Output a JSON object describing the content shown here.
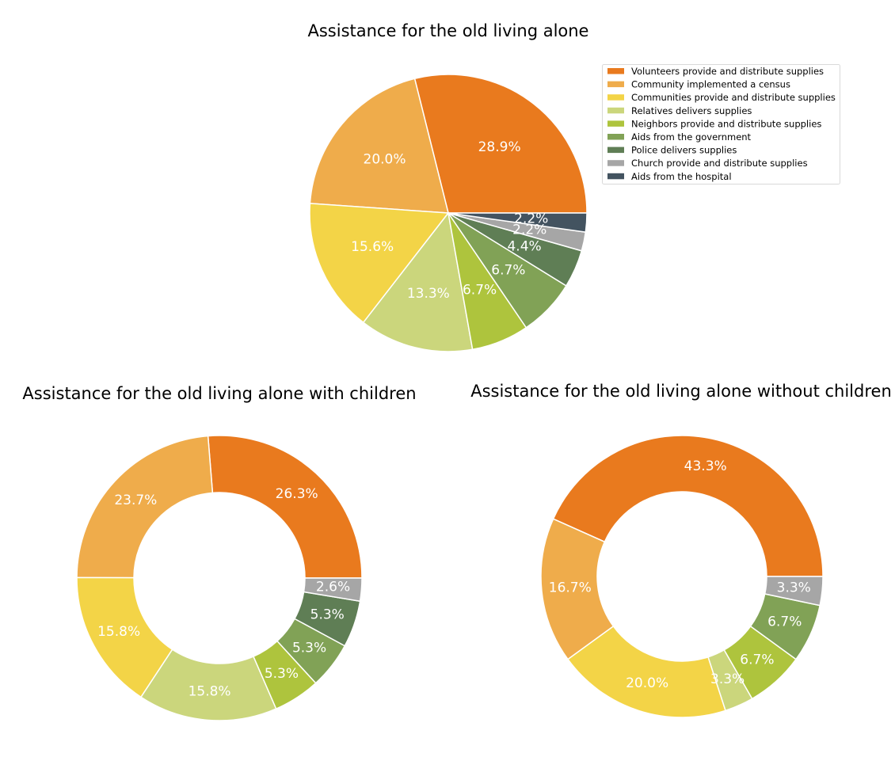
{
  "chart_data": [
    {
      "type": "pie",
      "title": "Assistance for the old living alone",
      "categories": [
        "Volunteers provide and distribute supplies",
        "Community implemented a census",
        "Communities provide and distribute supplies",
        "Relatives delivers supplies",
        "Neighbors provide and distribute supplies",
        "Aids from the government",
        "Police delivers supplies",
        "Church provide and distribute supplies",
        "Aids from the hospital"
      ],
      "values": [
        28.9,
        20.0,
        15.6,
        13.3,
        6.7,
        6.7,
        4.4,
        2.2,
        2.2
      ],
      "labels": [
        "28.9%",
        "20.0%",
        "15.6%",
        "13.3%",
        "6.7%",
        "6.7%",
        "4.4%",
        "2.2%",
        "2.2%"
      ],
      "colors": [
        "#E97A1E",
        "#EFAC4B",
        "#F3D447",
        "#CBD67C",
        "#AEC43D",
        "#81A256",
        "#5F7E55",
        "#A6A6A6",
        "#435360"
      ],
      "legend_placement": "top-right",
      "start_angle": 0,
      "direction": "counterclockwise"
    },
    {
      "type": "donut",
      "title": "Assistance for the old living alone with children",
      "categories": [
        "Volunteers provide and distribute supplies",
        "Community implemented a census",
        "Communities provide and distribute supplies",
        "Relatives delivers supplies",
        "Neighbors provide and distribute supplies",
        "Aids from the government",
        "Police delivers supplies",
        "Church provide and distribute supplies"
      ],
      "values": [
        26.3,
        23.7,
        15.8,
        15.8,
        5.3,
        5.3,
        5.3,
        2.6
      ],
      "labels": [
        "26.3%",
        "23.7%",
        "15.8%",
        "15.8%",
        "5.3%",
        "5.3%",
        "5.3%",
        "2.6%"
      ],
      "colors": [
        "#E97A1E",
        "#EFAC4B",
        "#F3D447",
        "#CBD67C",
        "#AEC43D",
        "#81A256",
        "#5F7E55",
        "#A6A6A6"
      ],
      "start_angle": 0,
      "direction": "counterclockwise"
    },
    {
      "type": "donut",
      "title": "Assistance for the old living alone without children",
      "categories": [
        "Volunteers provide and distribute supplies",
        "Community implemented a census",
        "Communities provide and distribute supplies",
        "Relatives delivers supplies",
        "Neighbors provide and distribute supplies",
        "Aids from the government",
        "Church provide and distribute supplies"
      ],
      "values": [
        43.3,
        16.7,
        20.0,
        3.3,
        6.7,
        6.7,
        3.3
      ],
      "labels": [
        "43.3%",
        "16.7%",
        "20.0%",
        "3.3%",
        "6.7%",
        "6.7%",
        "3.3%"
      ],
      "colors": [
        "#E97A1E",
        "#EFAC4B",
        "#F3D447",
        "#CBD67C",
        "#AEC43D",
        "#81A256",
        "#A6A6A6"
      ],
      "start_angle": 0,
      "direction": "counterclockwise"
    }
  ]
}
